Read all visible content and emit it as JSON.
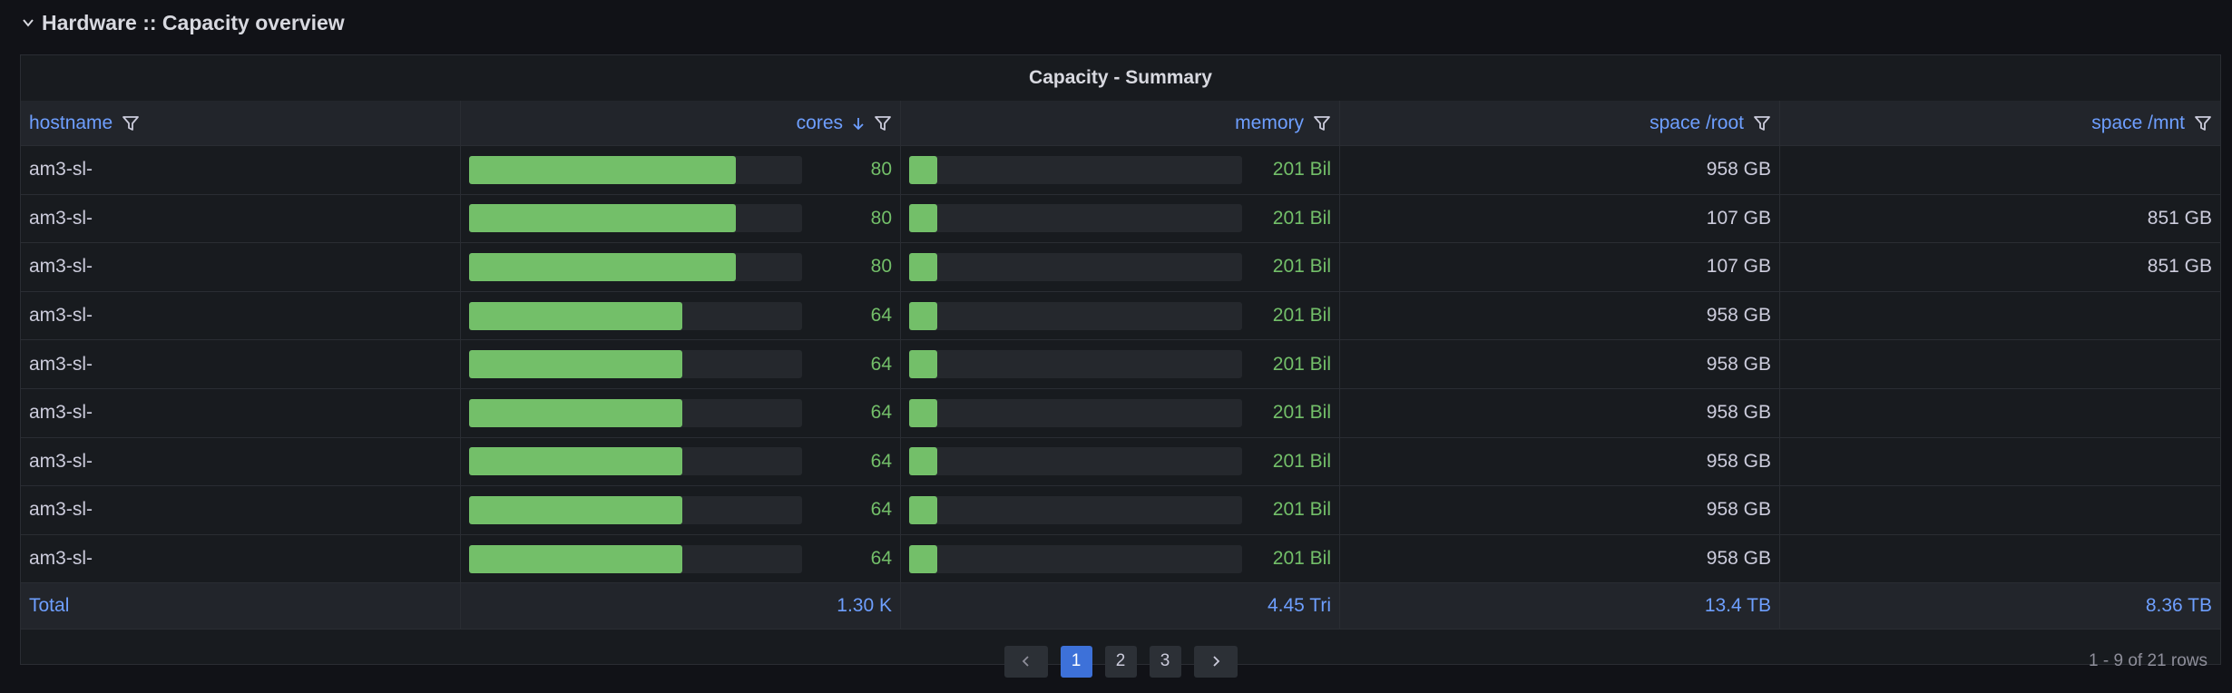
{
  "section_title": "Hardware :: Capacity overview",
  "panel_title": "Capacity - Summary",
  "table": {
    "columns": [
      "hostname",
      "cores",
      "memory",
      "space /root",
      "space /mnt"
    ],
    "rows": [
      [
        "am3-sl-",
        80,
        {
          "value": 201,
          "label": "201 Bil"
        },
        "958 GB",
        null
      ],
      [
        "am3-sl-",
        80,
        {
          "value": 201,
          "label": "201 Bil"
        },
        "107 GB",
        "851 GB"
      ],
      [
        "am3-sl-",
        80,
        {
          "value": 201,
          "label": "201 Bil"
        },
        "107 GB",
        "851 GB"
      ],
      [
        "am3-sl-",
        64,
        {
          "value": 201,
          "label": "201 Bil"
        },
        "958 GB",
        null
      ],
      [
        "am3-sl-",
        64,
        {
          "value": 201,
          "label": "201 Bil"
        },
        "958 GB",
        null
      ],
      [
        "am3-sl-",
        64,
        {
          "value": 201,
          "label": "201 Bil"
        },
        "958 GB",
        null
      ],
      [
        "am3-sl-",
        64,
        {
          "value": 201,
          "label": "201 Bil"
        },
        "958 GB",
        null
      ],
      [
        "am3-sl-",
        64,
        {
          "value": 201,
          "label": "201 Bil"
        },
        "958 GB",
        null
      ],
      [
        "am3-sl-",
        64,
        {
          "value": 201,
          "label": "201 Bil"
        },
        "958 GB",
        null
      ]
    ],
    "total": [
      "Total",
      "1.30 K",
      "4.45 Tri",
      "13.4 TB",
      "8.36 TB"
    ]
  },
  "pagination": {
    "pages": [
      "1",
      "2",
      "3"
    ],
    "current": "1",
    "summary": "1 - 9 of 21 rows"
  }
}
